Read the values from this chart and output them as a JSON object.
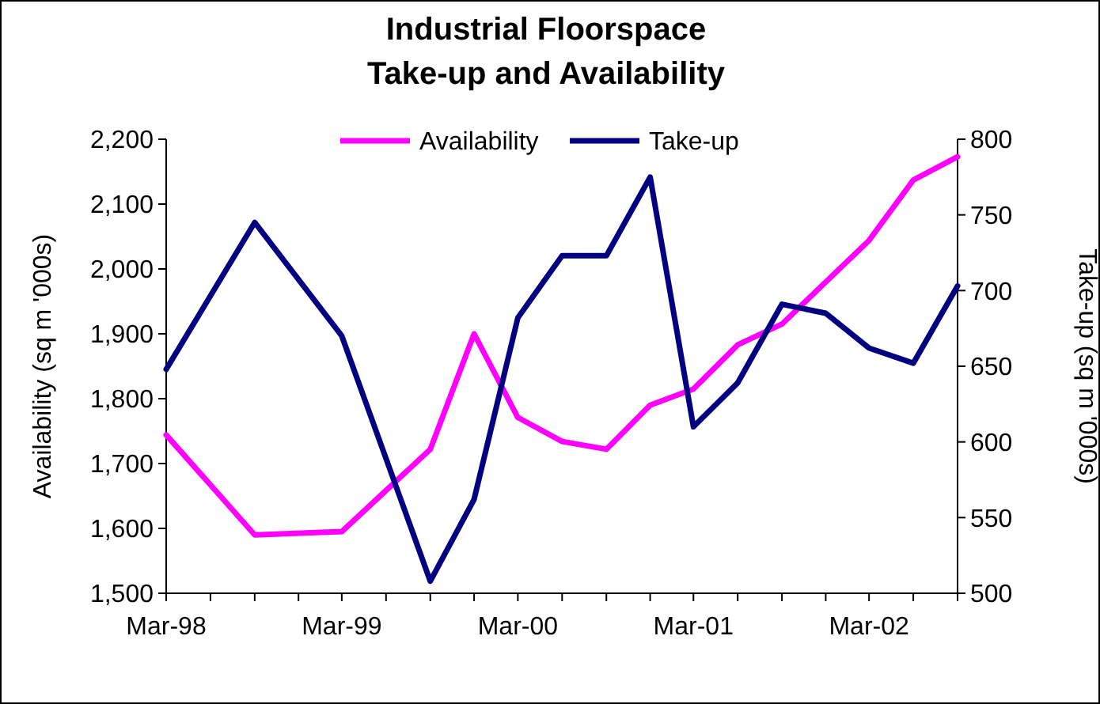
{
  "chart_data": {
    "type": "line",
    "title": "Industrial Floorspace\nTake-up and Availability",
    "x": [
      "1998-03",
      "1998-09",
      "1999-03",
      "1999-09",
      "1999-12",
      "2000-03",
      "2000-06",
      "2000-09",
      "2000-12",
      "2001-03",
      "2001-06",
      "2001-09",
      "2001-12",
      "2002-03",
      "2002-06",
      "2002-09"
    ],
    "series": [
      {
        "name": "Availability",
        "color": "#ff00ff",
        "values": [
          1744,
          1590,
          1595,
          1722,
          1900,
          1771,
          1734,
          1722,
          1790,
          1815,
          1883,
          1915,
          1980,
          2044,
          2137,
          2173
        ]
      },
      {
        "name": "Take-up",
        "color": "#000080",
        "axis": "y2",
        "values": [
          648,
          745,
          670,
          508,
          562,
          682,
          723,
          723,
          775,
          610,
          639,
          691,
          685,
          662,
          652,
          703
        ]
      }
    ],
    "xlim": [
      "1998-03",
      "2002-09"
    ],
    "xticks": [
      {
        "value": "1998-03",
        "label": "Mar-98"
      },
      {
        "value": "1998-06",
        "label": null
      },
      {
        "value": "1998-09",
        "label": null
      },
      {
        "value": "1998-12",
        "label": null
      },
      {
        "value": "1999-03",
        "label": "Mar-99"
      },
      {
        "value": "1999-06",
        "label": null
      },
      {
        "value": "1999-09",
        "label": null
      },
      {
        "value": "1999-12",
        "label": null
      },
      {
        "value": "2000-03",
        "label": "Mar-00"
      },
      {
        "value": "2000-06",
        "label": null
      },
      {
        "value": "2000-09",
        "label": null
      },
      {
        "value": "2000-12",
        "label": null
      },
      {
        "value": "2001-03",
        "label": "Mar-01"
      },
      {
        "value": "2001-06",
        "label": null
      },
      {
        "value": "2001-09",
        "label": null
      },
      {
        "value": "2001-12",
        "label": null
      },
      {
        "value": "2002-03",
        "label": "Mar-02"
      },
      {
        "value": "2002-06",
        "label": null
      },
      {
        "value": "2002-09",
        "label": null
      }
    ],
    "ylim": [
      1500,
      2200
    ],
    "yticks": [
      {
        "value": 1500,
        "label": "1,500"
      },
      {
        "value": 1600,
        "label": "1,600"
      },
      {
        "value": 1700,
        "label": "1,700"
      },
      {
        "value": 1800,
        "label": "1,800"
      },
      {
        "value": 1900,
        "label": "1,900"
      },
      {
        "value": 2000,
        "label": "2,000"
      },
      {
        "value": 2100,
        "label": "2,100"
      },
      {
        "value": 2200,
        "label": "2,200"
      }
    ],
    "y2lim": [
      500,
      800
    ],
    "y2ticks": [
      500,
      550,
      600,
      650,
      700,
      750,
      800
    ],
    "ylabel": "Availability (sq m '000s)",
    "y2label": "Take-up (sq m '000s)",
    "legend": "top",
    "grid": false,
    "marker": "none",
    "line_style": "solid"
  }
}
